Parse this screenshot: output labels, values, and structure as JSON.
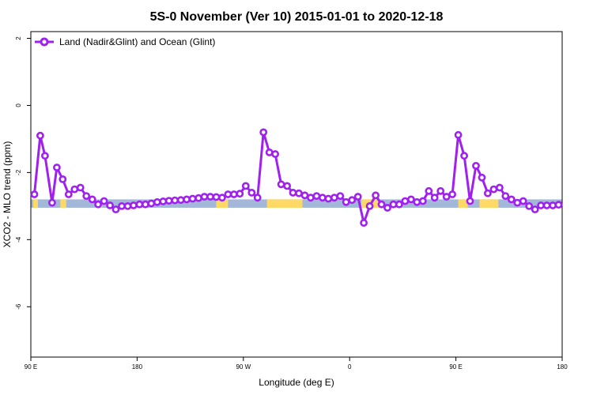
{
  "chart_data": {
    "type": "line",
    "title": "5S-0 November (Ver 10)   2015-01-01 to 2020-12-18",
    "xlabel": "Longitude (deg E)",
    "ylabel": "XCO2 - MLO trend (ppm)",
    "xlim": [
      90,
      540
    ],
    "ylim": [
      -7.5,
      2.2
    ],
    "x_ticks": [
      {
        "value": 90,
        "label": "90 E"
      },
      {
        "value": 180,
        "label": "180"
      },
      {
        "value": 270,
        "label": "90 W"
      },
      {
        "value": 360,
        "label": "0"
      },
      {
        "value": 450,
        "label": "90 E"
      },
      {
        "value": 540,
        "label": "180"
      }
    ],
    "y_ticks": [
      {
        "value": 2,
        "label": "2"
      },
      {
        "value": 0,
        "label": "0"
      },
      {
        "value": -2,
        "label": "-2"
      },
      {
        "value": -4,
        "label": "-4"
      },
      {
        "value": -6,
        "label": "-6"
      }
    ],
    "grid": false,
    "legend": {
      "position": "top-left"
    },
    "series": [
      {
        "name": "Land (Nadir&Glint) and Ocean (Glint)",
        "color": "#a020f0",
        "x": [
          93,
          98,
          102,
          108,
          112,
          117,
          122,
          127,
          132,
          137,
          142,
          147,
          152,
          157,
          162,
          167,
          172,
          177,
          182,
          187,
          192,
          197,
          202,
          207,
          212,
          217,
          222,
          227,
          232,
          237,
          242,
          247,
          252,
          257,
          262,
          267,
          272,
          277,
          282,
          287,
          292,
          297,
          302,
          307,
          312,
          317,
          322,
          327,
          332,
          337,
          342,
          347,
          352,
          357,
          362,
          367,
          372,
          377,
          382,
          387,
          392,
          397,
          402,
          407,
          412,
          417,
          422,
          427,
          432,
          437,
          442,
          447,
          452,
          457,
          462,
          467,
          472,
          477,
          482,
          487,
          492,
          497,
          502,
          507,
          512,
          517,
          522,
          527,
          532,
          537
        ],
        "y": [
          -2.65,
          -0.9,
          -1.5,
          -2.9,
          -1.85,
          -2.2,
          -2.65,
          -2.5,
          -2.45,
          -2.7,
          -2.8,
          -2.95,
          -2.85,
          -2.98,
          -3.1,
          -3.0,
          -3.0,
          -2.98,
          -2.95,
          -2.95,
          -2.92,
          -2.88,
          -2.86,
          -2.84,
          -2.83,
          -2.82,
          -2.8,
          -2.78,
          -2.76,
          -2.72,
          -2.72,
          -2.73,
          -2.75,
          -2.65,
          -2.65,
          -2.63,
          -2.4,
          -2.6,
          -2.75,
          -0.8,
          -1.4,
          -1.45,
          -2.35,
          -2.4,
          -2.6,
          -2.62,
          -2.68,
          -2.75,
          -2.7,
          -2.75,
          -2.78,
          -2.75,
          -2.7,
          -2.88,
          -2.82,
          -2.72,
          -3.5,
          -3.0,
          -2.68,
          -2.95,
          -3.05,
          -2.95,
          -2.95,
          -2.85,
          -2.8,
          -2.88,
          -2.85,
          -2.55,
          -2.75,
          -2.55,
          -2.72,
          -2.65,
          -0.88,
          -1.5,
          -2.85,
          -1.8,
          -2.15,
          -2.62,
          -2.5,
          -2.45,
          -2.7,
          -2.8,
          -2.9,
          -2.85,
          -3.0,
          -3.1,
          -2.98,
          -2.98,
          -2.98,
          -2.96
        ]
      }
    ],
    "background_band": {
      "y_top": -2.8,
      "y_bottom": -3.05,
      "ocean_color": "#a3b8d9",
      "land_color": "#ffd966"
    }
  }
}
